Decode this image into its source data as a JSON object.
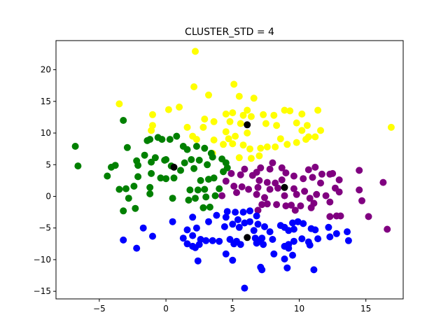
{
  "chart_data": {
    "type": "scatter",
    "title": "CLUSTER_STD = 4",
    "xlabel": "",
    "ylabel": "",
    "xlim": [
      -8.25,
      17.8
    ],
    "ylim": [
      -16.2,
      24.6
    ],
    "x_ticks": [
      -5,
      0,
      5,
      10,
      15
    ],
    "y_ticks": [
      -15,
      -10,
      -5,
      0,
      5,
      10,
      15,
      20
    ],
    "grid": false,
    "legend": false,
    "series": [
      {
        "color": "#ffff00",
        "points": [
          [
            2.2,
            22.9
          ],
          [
            5.1,
            17.7
          ],
          [
            2.1,
            17.3
          ],
          [
            3.2,
            16.0
          ],
          [
            -3.5,
            14.6
          ],
          [
            5.5,
            15.8
          ],
          [
            6.6,
            15.5
          ],
          [
            0.2,
            13.7
          ],
          [
            1.0,
            14.1
          ],
          [
            -1.0,
            12.9
          ],
          [
            4.5,
            13.0
          ],
          [
            5.0,
            13.2
          ],
          [
            5.8,
            12.8
          ],
          [
            6.4,
            12.6
          ],
          [
            6.1,
            13.6
          ],
          [
            7.3,
            12.9
          ],
          [
            8.1,
            12.8
          ],
          [
            8.9,
            13.6
          ],
          [
            9.3,
            13.5
          ],
          [
            10.2,
            13.0
          ],
          [
            11.4,
            13.6
          ],
          [
            2.9,
            12.2
          ],
          [
            3.6,
            11.8
          ],
          [
            4.8,
            11.8
          ],
          [
            5.6,
            11.5
          ],
          [
            7.5,
            11.5
          ],
          [
            8.3,
            11.2
          ],
          [
            9.8,
            11.6
          ],
          [
            10.6,
            11.2
          ],
          [
            2.8,
            10.9
          ],
          [
            1.6,
            10.9
          ],
          [
            -1.1,
            10.4
          ],
          [
            -1.0,
            11.2
          ],
          [
            10.2,
            10.4
          ],
          [
            11.6,
            10.4
          ],
          [
            16.9,
            10.9
          ],
          [
            4.5,
            10.2
          ],
          [
            6.1,
            10.0
          ],
          [
            10.7,
            9.4
          ],
          [
            11.2,
            9.4
          ],
          [
            2.0,
            9.5
          ],
          [
            2.3,
            9.0
          ],
          [
            3.6,
            8.9
          ],
          [
            4.7,
            9.1
          ],
          [
            5.2,
            9.5
          ],
          [
            8.6,
            9.1
          ],
          [
            9.1,
            8.2
          ],
          [
            9.8,
            8.5
          ],
          [
            10.5,
            9.0
          ],
          [
            4.3,
            8.2
          ],
          [
            5.0,
            8.3
          ],
          [
            5.8,
            8.1
          ],
          [
            6.3,
            7.5
          ],
          [
            7.1,
            7.6
          ],
          [
            7.6,
            7.8
          ],
          [
            8.2,
            7.8
          ],
          [
            3.5,
            6.8
          ],
          [
            5.5,
            6.1
          ],
          [
            6.4,
            6.0
          ],
          [
            7.0,
            6.4
          ]
        ]
      },
      {
        "color": "#008000",
        "points": [
          [
            -6.8,
            7.9
          ],
          [
            -6.6,
            4.8
          ],
          [
            -4.1,
            4.6
          ],
          [
            -3.8,
            4.9
          ],
          [
            -3.2,
            12.0
          ],
          [
            -2.9,
            7.7
          ],
          [
            -1.4,
            8.8
          ],
          [
            -1.2,
            9.0
          ],
          [
            -0.6,
            9.3
          ],
          [
            -0.3,
            9.0
          ],
          [
            0.3,
            9.0
          ],
          [
            0.8,
            9.5
          ],
          [
            1.3,
            7.9
          ],
          [
            1.6,
            7.4
          ],
          [
            2.3,
            7.9
          ],
          [
            2.9,
            7.6
          ],
          [
            3.4,
            6.8
          ],
          [
            -1.6,
            6.5
          ],
          [
            -0.8,
            6.1
          ],
          [
            0.0,
            5.8
          ],
          [
            -2.2,
            5.6
          ],
          [
            -2.1,
            4.9
          ],
          [
            -1.1,
            5.4
          ],
          [
            0.4,
            4.8
          ],
          [
            1.1,
            4.1
          ],
          [
            1.4,
            5.3
          ],
          [
            1.9,
            5.8
          ],
          [
            2.5,
            5.7
          ],
          [
            3.1,
            5.0
          ],
          [
            3.5,
            6.2
          ],
          [
            4.2,
            5.9
          ],
          [
            4.5,
            5.3
          ],
          [
            -4.4,
            3.2
          ],
          [
            -2.1,
            3.1
          ],
          [
            -1.1,
            3.6
          ],
          [
            -0.4,
            2.9
          ],
          [
            0.0,
            2.8
          ],
          [
            0.6,
            2.9
          ],
          [
            2.6,
            2.5
          ],
          [
            3.2,
            2.7
          ],
          [
            3.6,
            2.9
          ],
          [
            4.3,
            3.9
          ],
          [
            4.6,
            4.5
          ],
          [
            -3.5,
            1.1
          ],
          [
            -3.0,
            1.2
          ],
          [
            -2.4,
            1.6
          ],
          [
            -1.2,
            1.4
          ],
          [
            1.8,
            1.0
          ],
          [
            2.4,
            1.0
          ],
          [
            2.9,
            1.1
          ],
          [
            4.0,
            1.2
          ],
          [
            -1.2,
            0.4
          ],
          [
            -2.8,
            -0.3
          ],
          [
            0.5,
            -0.3
          ],
          [
            1.7,
            -0.6
          ],
          [
            2.2,
            -0.3
          ],
          [
            3.0,
            -0.1
          ],
          [
            3.7,
            0.1
          ],
          [
            -2.3,
            -1.9
          ],
          [
            -3.2,
            -2.3
          ],
          [
            2.8,
            -1.8
          ],
          [
            3.3,
            -1.7
          ],
          [
            2.1,
            4.4
          ],
          [
            -0.1,
            5.7
          ]
        ]
      },
      {
        "color": "#800080",
        "points": [
          [
            4.9,
            3.6
          ],
          [
            5.6,
            3.4
          ],
          [
            5.9,
            4.3
          ],
          [
            6.8,
            3.8
          ],
          [
            7.1,
            4.5
          ],
          [
            7.8,
            4.3
          ],
          [
            8.0,
            5.3
          ],
          [
            8.7,
            4.5
          ],
          [
            9.0,
            3.7
          ],
          [
            9.6,
            3.2
          ],
          [
            10.7,
            4.2
          ],
          [
            11.2,
            4.6
          ],
          [
            11.7,
            3.5
          ],
          [
            12.3,
            3.5
          ],
          [
            12.5,
            3.6
          ],
          [
            14.5,
            4.1
          ],
          [
            16.3,
            2.2
          ],
          [
            6.5,
            3.3
          ],
          [
            7.0,
            2.5
          ],
          [
            7.6,
            2.2
          ],
          [
            8.2,
            2.1
          ],
          [
            8.7,
            2.6
          ],
          [
            10.3,
            2.8
          ],
          [
            11.0,
            3.0
          ],
          [
            11.6,
            2.1
          ],
          [
            13.0,
            2.6
          ],
          [
            4.5,
            2.4
          ],
          [
            5.1,
            1.6
          ],
          [
            5.7,
            1.5
          ],
          [
            6.2,
            1.1
          ],
          [
            6.9,
            1.4
          ],
          [
            7.8,
            1.1
          ],
          [
            8.4,
            1.3
          ],
          [
            9.6,
            1.2
          ],
          [
            10.4,
            0.8
          ],
          [
            11.3,
            0.3
          ],
          [
            12.7,
            1.3
          ],
          [
            13.0,
            0.7
          ],
          [
            14.5,
            1.0
          ],
          [
            4.2,
            0.1
          ],
          [
            5.3,
            0.6
          ],
          [
            6.8,
            0.3
          ],
          [
            7.4,
            -0.2
          ],
          [
            8.9,
            0.1
          ],
          [
            9.8,
            0.3
          ],
          [
            10.8,
            -0.3
          ],
          [
            12.0,
            0.1
          ],
          [
            7.2,
            -1.3
          ],
          [
            7.6,
            -1.2
          ],
          [
            8.3,
            -1.3
          ],
          [
            9.0,
            -1.5
          ],
          [
            9.4,
            -1.4
          ],
          [
            10.1,
            -1.5
          ],
          [
            10.9,
            -1.8
          ],
          [
            11.1,
            -1.1
          ],
          [
            12.3,
            -0.9
          ],
          [
            14.7,
            -0.7
          ],
          [
            6.9,
            -2.2
          ],
          [
            9.7,
            -2.2
          ],
          [
            12.3,
            -3.2
          ],
          [
            12.8,
            -3.1
          ],
          [
            13.1,
            -3.1
          ],
          [
            15.2,
            -3.2
          ],
          [
            16.6,
            -5.2
          ]
        ]
      },
      {
        "color": "#0000ff",
        "points": [
          [
            4.6,
            -2.4
          ],
          [
            5.2,
            -2.5
          ],
          [
            5.8,
            -2.5
          ],
          [
            6.3,
            -2.3
          ],
          [
            6.8,
            -3.1
          ],
          [
            3.8,
            -3.0
          ],
          [
            4.5,
            -3.3
          ],
          [
            5.4,
            -3.7
          ],
          [
            2.0,
            -3.3
          ],
          [
            3.2,
            -4.0
          ],
          [
            5.9,
            -4.2
          ],
          [
            6.3,
            -4.0
          ],
          [
            6.9,
            -4.4
          ],
          [
            7.4,
            -4.8
          ],
          [
            8.6,
            -4.6
          ],
          [
            9.5,
            -4.2
          ],
          [
            9.9,
            -4.0
          ],
          [
            10.3,
            -4.3
          ],
          [
            10.9,
            -5.1
          ],
          [
            11.2,
            -5.3
          ],
          [
            12.2,
            -4.9
          ],
          [
            0.5,
            -4.0
          ],
          [
            1.6,
            -5.3
          ],
          [
            2.3,
            -5.0
          ],
          [
            4.4,
            -4.8
          ],
          [
            5.0,
            -4.4
          ],
          [
            5.5,
            -4.9
          ],
          [
            6.6,
            -5.4
          ],
          [
            7.8,
            -5.6
          ],
          [
            8.9,
            -4.9
          ],
          [
            9.2,
            -5.4
          ],
          [
            9.6,
            -5.2
          ],
          [
            12.8,
            -5.9
          ],
          [
            13.6,
            -5.6
          ],
          [
            -1.7,
            -5.0
          ],
          [
            1.3,
            -6.6
          ],
          [
            2.0,
            -6.2
          ],
          [
            2.6,
            -6.8
          ],
          [
            3.0,
            -7.0
          ],
          [
            3.5,
            -7.0
          ],
          [
            4.0,
            -7.1
          ],
          [
            4.8,
            -6.8
          ],
          [
            5.3,
            -7.1
          ],
          [
            6.7,
            -6.6
          ],
          [
            7.0,
            -7.0
          ],
          [
            7.2,
            -6.6
          ],
          [
            8.0,
            -6.8
          ],
          [
            9.2,
            -7.6
          ],
          [
            9.6,
            -7.1
          ],
          [
            10.2,
            -6.7
          ],
          [
            10.7,
            -7.2
          ],
          [
            11.4,
            -6.7
          ],
          [
            12.3,
            -6.4
          ],
          [
            13.7,
            -7.0
          ],
          [
            -1.0,
            -6.3
          ],
          [
            -3.2,
            -6.9
          ],
          [
            1.6,
            -7.5
          ],
          [
            2.0,
            -7.9
          ],
          [
            2.2,
            -8.1
          ],
          [
            2.5,
            -7.6
          ],
          [
            5.1,
            -7.5
          ],
          [
            5.6,
            -7.6
          ],
          [
            6.8,
            -7.4
          ],
          [
            7.3,
            -7.6
          ],
          [
            8.9,
            -7.9
          ],
          [
            9.2,
            -8.2
          ],
          [
            10.8,
            -7.7
          ],
          [
            -2.2,
            -8.2
          ],
          [
            4.5,
            -9.1
          ],
          [
            5.0,
            -10.1
          ],
          [
            8.1,
            -9.1
          ],
          [
            8.9,
            -9.9
          ],
          [
            9.5,
            -9.3
          ],
          [
            7.1,
            -11.2
          ],
          [
            7.2,
            -11.6
          ],
          [
            9.1,
            -11.3
          ],
          [
            11.1,
            -11.6
          ],
          [
            2.4,
            -10.2
          ],
          [
            5.9,
            -14.5
          ]
        ]
      },
      {
        "color": "#000000",
        "points": [
          [
            0.6,
            4.6
          ],
          [
            6.1,
            11.3
          ],
          [
            8.9,
            1.4
          ],
          [
            6.1,
            -6.5
          ]
        ]
      }
    ]
  }
}
